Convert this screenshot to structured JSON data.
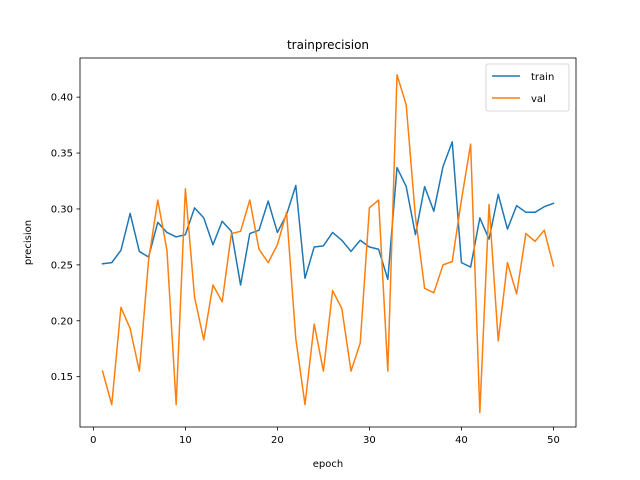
{
  "chart_data": {
    "type": "line",
    "title": "trainprecision",
    "xlabel": "epoch",
    "ylabel": "precision",
    "xlim": [
      -1.45,
      52.45
    ],
    "ylim": [
      0.105,
      0.435
    ],
    "xticks": [
      0,
      10,
      20,
      30,
      40,
      50
    ],
    "yticks": [
      0.15,
      0.2,
      0.25,
      0.3,
      0.35,
      0.4
    ],
    "ytick_labels": [
      "0.15",
      "0.20",
      "0.25",
      "0.30",
      "0.35",
      "0.40"
    ],
    "grid": false,
    "legend_position": "upper right",
    "x": [
      1,
      2,
      3,
      4,
      5,
      6,
      7,
      8,
      9,
      10,
      11,
      12,
      13,
      14,
      15,
      16,
      17,
      18,
      19,
      20,
      21,
      22,
      23,
      24,
      25,
      26,
      27,
      28,
      29,
      30,
      31,
      32,
      33,
      34,
      35,
      36,
      37,
      38,
      39,
      40,
      41,
      42,
      43,
      44,
      45,
      46,
      47,
      48,
      49,
      50
    ],
    "series": [
      {
        "name": "train",
        "color": "#1f77b4",
        "values": [
          0.251,
          0.252,
          0.263,
          0.296,
          0.262,
          0.257,
          0.288,
          0.279,
          0.275,
          0.277,
          0.301,
          0.292,
          0.268,
          0.289,
          0.28,
          0.232,
          0.278,
          0.281,
          0.307,
          0.279,
          0.295,
          0.321,
          0.238,
          0.266,
          0.267,
          0.279,
          0.272,
          0.262,
          0.272,
          0.266,
          0.264,
          0.237,
          0.337,
          0.32,
          0.277,
          0.32,
          0.298,
          0.338,
          0.36,
          0.252,
          0.248,
          0.292,
          0.273,
          0.313,
          0.282,
          0.303,
          0.297,
          0.297,
          0.302,
          0.305
        ]
      },
      {
        "name": "val",
        "color": "#ff7f0e",
        "values": [
          0.155,
          0.125,
          0.212,
          0.193,
          0.155,
          0.254,
          0.308,
          0.263,
          0.125,
          0.318,
          0.221,
          0.183,
          0.232,
          0.217,
          0.278,
          0.28,
          0.308,
          0.264,
          0.252,
          0.268,
          0.297,
          0.184,
          0.125,
          0.197,
          0.155,
          0.227,
          0.211,
          0.155,
          0.18,
          0.301,
          0.308,
          0.155,
          0.42,
          0.393,
          0.293,
          0.229,
          0.225,
          0.25,
          0.253,
          0.308,
          0.358,
          0.118,
          0.304,
          0.182,
          0.252,
          0.224,
          0.278,
          0.271,
          0.281,
          0.249
        ]
      }
    ]
  }
}
